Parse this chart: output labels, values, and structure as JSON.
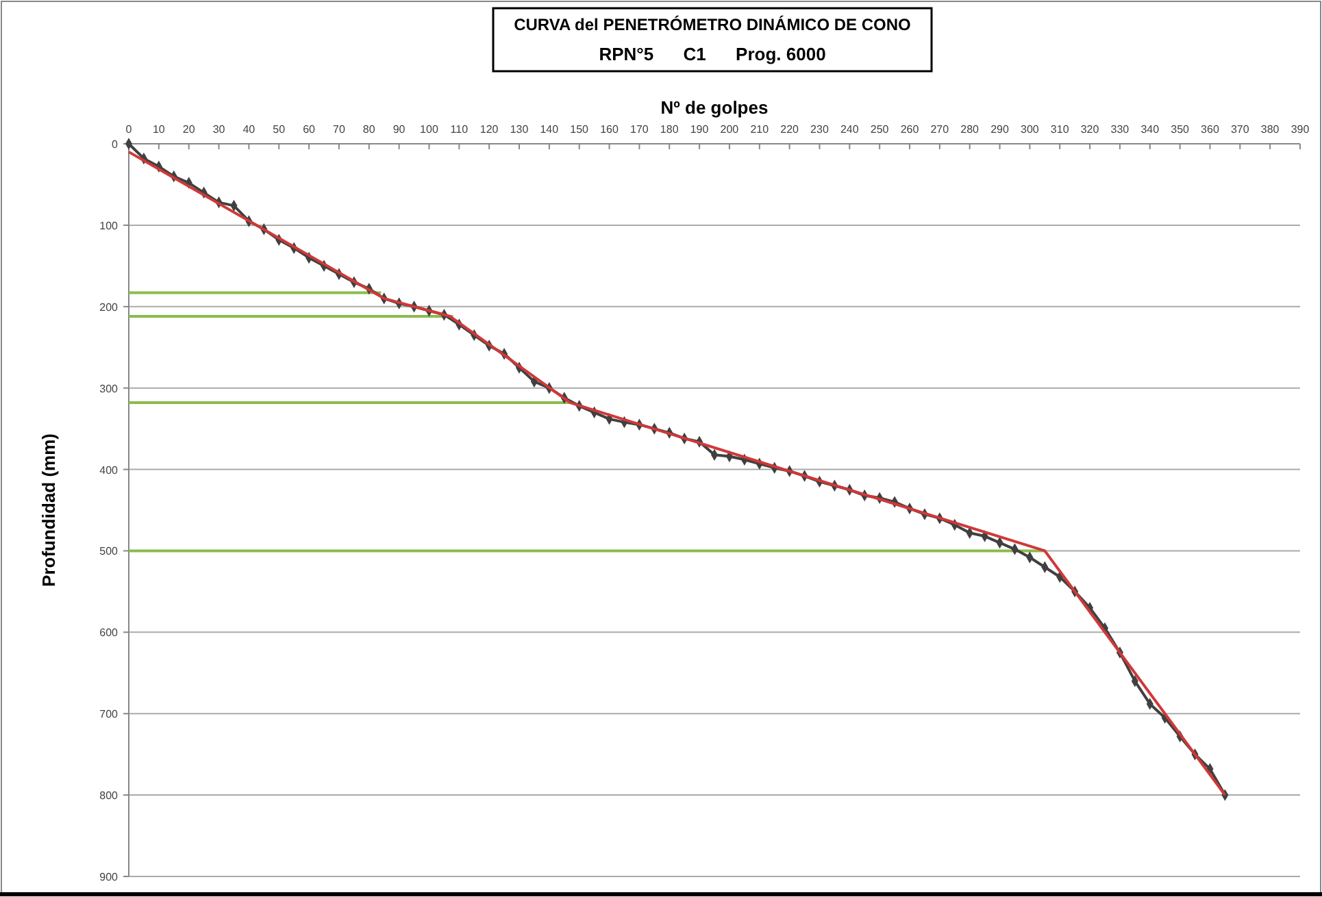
{
  "chart_data": {
    "type": "line",
    "title": "CURVA del PENETRÓMETRO DINÁMICO DE CONO",
    "subtitle": "RPN°5      C1      Prog. 6000",
    "xlabel": "Nº de golpes",
    "ylabel": "Profundidad (mm)",
    "xlim": [
      0,
      390
    ],
    "xticks": [
      0,
      10,
      20,
      30,
      40,
      50,
      60,
      70,
      80,
      90,
      100,
      110,
      120,
      130,
      140,
      150,
      160,
      170,
      180,
      190,
      200,
      210,
      220,
      230,
      240,
      250,
      260,
      270,
      280,
      290,
      300,
      310,
      320,
      330,
      340,
      350,
      360,
      370,
      380,
      390
    ],
    "ylim": [
      900,
      0
    ],
    "yticks": [
      0,
      100,
      200,
      300,
      400,
      500,
      600,
      700,
      800,
      900
    ],
    "grid": "y",
    "series": [
      {
        "color": "#8bbb4a",
        "marker": "none",
        "x": [
          0,
          84
        ],
        "values": [
          183,
          183
        ]
      },
      {
        "color": "#8bbb4a",
        "marker": "none",
        "x": [
          0,
          108
        ],
        "values": [
          212,
          212
        ]
      },
      {
        "color": "#8bbb4a",
        "marker": "none",
        "x": [
          0,
          147
        ],
        "values": [
          318,
          318
        ]
      },
      {
        "color": "#8bbb4a",
        "marker": "none",
        "x": [
          0,
          305
        ],
        "values": [
          500,
          500
        ]
      },
      {
        "color": "#404040",
        "marker": "diamond",
        "x": [
          0,
          5,
          10,
          15,
          20,
          25,
          30,
          35,
          40,
          45,
          50,
          55,
          60,
          65,
          70,
          75,
          80,
          85,
          90,
          95,
          100,
          105,
          110,
          115,
          120,
          125,
          130,
          135,
          140,
          145,
          150,
          155,
          160,
          165,
          170,
          175,
          180,
          185,
          190,
          195,
          200,
          205,
          210,
          215,
          220,
          225,
          230,
          235,
          240,
          245,
          250,
          255,
          260,
          265,
          270,
          275,
          280,
          285,
          290,
          295,
          300,
          305,
          310,
          315,
          320,
          325,
          330,
          335,
          340,
          345,
          350,
          355,
          360,
          365
        ],
        "values": [
          0,
          18,
          28,
          40,
          48,
          60,
          72,
          76,
          95,
          105,
          118,
          128,
          140,
          150,
          160,
          170,
          178,
          190,
          196,
          200,
          205,
          210,
          222,
          235,
          248,
          258,
          275,
          292,
          300,
          312,
          322,
          330,
          338,
          342,
          345,
          350,
          355,
          362,
          366,
          382,
          384,
          388,
          393,
          398,
          402,
          408,
          415,
          420,
          425,
          432,
          435,
          440,
          448,
          455,
          460,
          468,
          478,
          482,
          490,
          498,
          508,
          520,
          532,
          550,
          570,
          595,
          625,
          660,
          688,
          705,
          728,
          750,
          768,
          800
        ]
      },
      {
        "color": "#d03838",
        "marker": "none",
        "x": [
          0,
          85,
          107,
          147,
          305,
          365
        ],
        "values": [
          10,
          190,
          212,
          318,
          500,
          800
        ]
      }
    ]
  }
}
